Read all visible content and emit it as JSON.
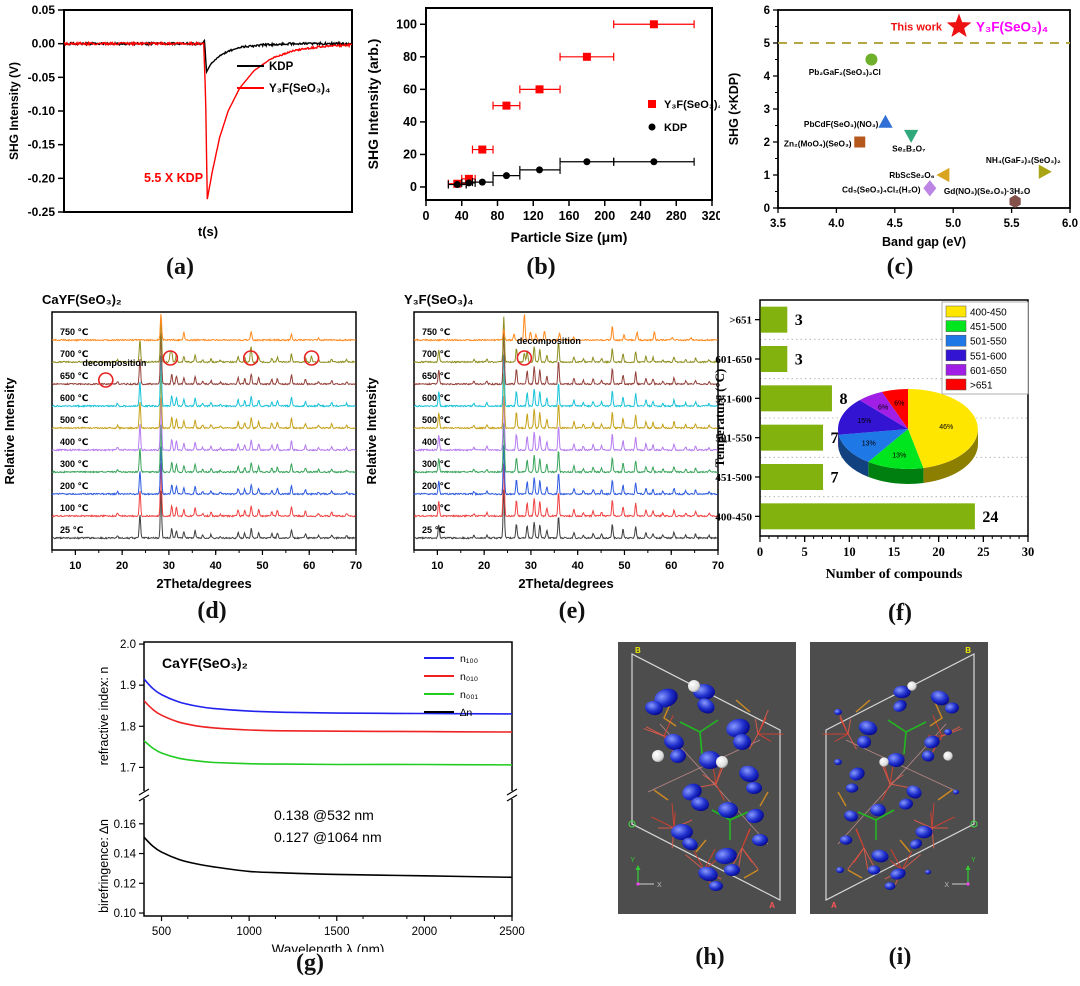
{
  "captions": {
    "a": "(a)",
    "b": "(b)",
    "c": "(c)",
    "d": "(d)",
    "e": "(e)",
    "f": "(f)",
    "g": "(g)",
    "h": "(h)",
    "i": "(i)"
  },
  "chart_data": [
    {
      "panel": "a",
      "type": "line",
      "xlabel": "t(s)",
      "ylabel": "SHG Intensity (V)",
      "xlim": [
        0,
        10
      ],
      "ylim": [
        -0.25,
        0.05
      ],
      "yticks": [
        "0.05",
        "0.00",
        "-0.05",
        "-0.10",
        "-0.15",
        "-0.20",
        "-0.25"
      ],
      "annotation": {
        "text": "5.5 X KDP",
        "color": "#ff0000"
      },
      "legend_position": "middle-right",
      "series": [
        {
          "name": "KDP",
          "color": "#000000",
          "points": [
            [
              0,
              0
            ],
            [
              4.8,
              0
            ],
            [
              4.88,
              0.004
            ],
            [
              4.95,
              -0.042
            ],
            [
              5.1,
              -0.03
            ],
            [
              5.35,
              -0.02
            ],
            [
              5.7,
              -0.011
            ],
            [
              6.2,
              -0.005
            ],
            [
              6.9,
              -0.002
            ],
            [
              8,
              0
            ],
            [
              10,
              0
            ]
          ]
        },
        {
          "name": "Y₃F(SeO₃)₄",
          "color": "#ff0000",
          "points": [
            [
              0,
              0
            ],
            [
              4.85,
              0
            ],
            [
              4.92,
              -0.08
            ],
            [
              4.97,
              -0.232
            ],
            [
              5.15,
              -0.19
            ],
            [
              5.4,
              -0.14
            ],
            [
              5.7,
              -0.1
            ],
            [
              6.1,
              -0.066
            ],
            [
              6.6,
              -0.04
            ],
            [
              7.2,
              -0.022
            ],
            [
              8,
              -0.01
            ],
            [
              9,
              -0.004
            ],
            [
              10,
              -0.002
            ]
          ]
        }
      ]
    },
    {
      "panel": "b",
      "type": "scatter",
      "xlabel": "Particle Size (μm)",
      "ylabel": "SHG Intensity (arb.)",
      "xlim": [
        0,
        320
      ],
      "xticks": [
        0,
        40,
        80,
        120,
        160,
        200,
        240,
        280,
        320
      ],
      "ylim": [
        -8,
        110
      ],
      "yticks": [
        0,
        20,
        40,
        60,
        80,
        100
      ],
      "series": [
        {
          "name": "Y₃F(SeO₃)₄",
          "color": "#ff0000",
          "marker": "square",
          "points": [
            {
              "x": 35,
              "y": 2,
              "xlo": 25,
              "xhi": 45
            },
            {
              "x": 48,
              "y": 5,
              "xlo": 40,
              "xhi": 55
            },
            {
              "x": 63,
              "y": 23,
              "xlo": 52,
              "xhi": 75
            },
            {
              "x": 90,
              "y": 50,
              "xlo": 75,
              "xhi": 105
            },
            {
              "x": 127,
              "y": 60,
              "xlo": 105,
              "xhi": 150
            },
            {
              "x": 180,
              "y": 80,
              "xlo": 150,
              "xhi": 210
            },
            {
              "x": 255,
              "y": 100,
              "xlo": 210,
              "xhi": 300
            }
          ]
        },
        {
          "name": "KDP",
          "color": "#000000",
          "marker": "circle",
          "points": [
            {
              "x": 35,
              "y": 1.5,
              "xlo": 25,
              "xhi": 45
            },
            {
              "x": 48,
              "y": 2.5,
              "xlo": 40,
              "xhi": 55
            },
            {
              "x": 63,
              "y": 3,
              "xlo": 52,
              "xhi": 75
            },
            {
              "x": 90,
              "y": 7,
              "xlo": 75,
              "xhi": 105
            },
            {
              "x": 127,
              "y": 10.5,
              "xlo": 105,
              "xhi": 150
            },
            {
              "x": 180,
              "y": 15.5,
              "xlo": 150,
              "xhi": 210
            },
            {
              "x": 255,
              "y": 15.5,
              "xlo": 210,
              "xhi": 300
            }
          ]
        }
      ]
    },
    {
      "panel": "c",
      "type": "scatter-labeled",
      "xlabel": "Band gap (eV)",
      "ylabel": "SHG (×KDP)",
      "xlim": [
        3.5,
        6.0
      ],
      "xticks": [
        "3.5",
        "4.0",
        "4.5",
        "5.0",
        "5.5",
        "6.0"
      ],
      "ylim": [
        0,
        6
      ],
      "yticks": [
        0,
        1,
        2,
        3,
        4,
        5,
        6
      ],
      "ref_line": {
        "y": 5,
        "color": "#b5a642"
      },
      "highlight": {
        "label_1": "This work",
        "label_1_color": "#ee1111",
        "label_2": "Y₃F(SeO₃)₄",
        "label_2_color": "#ff00ff",
        "x": 5.05,
        "y": 5.5,
        "marker": "star",
        "color": "#ee1111"
      },
      "points": [
        {
          "label": "Pb₂GaF₂(SeO₃)₂Cl",
          "x": 4.3,
          "y": 4.5,
          "marker": "circle",
          "color": "#6fb02a",
          "lx": 4.38,
          "ly": 4.12,
          "anchor": "end"
        },
        {
          "label": "PbCdF(SeO₃)(NO₃)",
          "x": 4.42,
          "y": 2.6,
          "marker": "triangle-up",
          "color": "#2f6fd6",
          "lx": 4.36,
          "ly": 2.55,
          "anchor": "end"
        },
        {
          "label": "Se₂B₂O₇",
          "x": 4.64,
          "y": 2.2,
          "marker": "triangle-down",
          "color": "#2fa87c",
          "lx": 4.62,
          "ly": 1.8,
          "anchor": "middle"
        },
        {
          "label": "Zn₂(MoO₄)(SeO₃)",
          "x": 4.2,
          "y": 2.0,
          "marker": "square",
          "color": "#b4591b",
          "lx": 4.13,
          "ly": 1.95,
          "anchor": "end"
        },
        {
          "label": "RbScSe₂O₆",
          "x": 4.92,
          "y": 1.0,
          "marker": "triangle-left",
          "color": "#d9a520",
          "lx": 4.84,
          "ly": 1.0,
          "anchor": "end"
        },
        {
          "label": "NH₄(GaF₂)₃(SeO₃)₂",
          "x": 5.78,
          "y": 1.1,
          "marker": "triangle-right",
          "color": "#aaa414",
          "lx": 5.92,
          "ly": 1.45,
          "anchor": "end"
        },
        {
          "label": "Cd₅(SeO₃)₄Cl₂(H₂O)",
          "x": 4.8,
          "y": 0.6,
          "marker": "diamond",
          "color": "#bc84e4",
          "lx": 4.72,
          "ly": 0.56,
          "anchor": "end"
        },
        {
          "label": "Gd(NO₃)(Se₂O₅)·3H₂O",
          "x": 5.53,
          "y": 0.2,
          "marker": "hexagon",
          "color": "#84504a",
          "lx": 5.66,
          "ly": 0.52,
          "anchor": "end"
        }
      ]
    },
    {
      "panel": "d",
      "type": "xrd-stack",
      "title": "CaYF(SeO₃)₂",
      "xlabel": "2Theta/degrees",
      "ylabel": "Relative Intensity",
      "xlim": [
        5,
        70
      ],
      "xticks": [
        10,
        20,
        30,
        40,
        50,
        60,
        70
      ],
      "temperatures": [
        "25 ℃",
        "100 ℃",
        "200 ℃",
        "300 ℃",
        "400 ℃",
        "500 ℃",
        "600 ℃",
        "650 ℃",
        "700 ℃",
        "750 ℃"
      ],
      "colors": [
        "#3f3f3f",
        "#f04242",
        "#2e5bdf",
        "#3aa45c",
        "#b57bef",
        "#c7a21b",
        "#19c2d8",
        "#94403a",
        "#8e8e20",
        "#ff8a1f"
      ],
      "annotation": {
        "text": "decomposition",
        "x": 11.5,
        "trace": 7
      },
      "circles": [
        {
          "x": 16.5,
          "trace": 7
        },
        {
          "x": 30.3,
          "trace": 8
        },
        {
          "x": 47.5,
          "trace": 8
        },
        {
          "x": 60.5,
          "trace": 8
        }
      ],
      "peaks_main": [
        [
          19,
          0.05
        ],
        [
          23.8,
          0.5
        ],
        [
          28.3,
          1.0
        ],
        [
          30.6,
          0.2
        ],
        [
          31.6,
          0.16
        ],
        [
          33.2,
          0.13
        ],
        [
          35.6,
          0.16
        ],
        [
          37.2,
          0.05
        ],
        [
          39,
          0.07
        ],
        [
          41,
          0.04
        ],
        [
          44.8,
          0.12
        ],
        [
          46.2,
          0.1
        ],
        [
          47.6,
          0.2
        ],
        [
          49.2,
          0.12
        ],
        [
          52,
          0.09
        ],
        [
          53.2,
          0.11
        ],
        [
          56.2,
          0.18
        ],
        [
          59.2,
          0.09
        ],
        [
          62,
          0.05
        ],
        [
          64.8,
          0.07
        ],
        [
          68,
          0.05
        ]
      ],
      "peaks_extra_700": [
        [
          30.3,
          0.22
        ],
        [
          47.5,
          0.18
        ],
        [
          60.5,
          0.13
        ]
      ],
      "peaks_top": [
        [
          28.3,
          1.0
        ],
        [
          33.2,
          0.3
        ],
        [
          47.6,
          0.32
        ],
        [
          56.2,
          0.22
        ],
        [
          62,
          0.07
        ]
      ]
    },
    {
      "panel": "e",
      "type": "xrd-stack",
      "title": "Y₃F(SeO₃)₄",
      "xlabel": "2Theta/degrees",
      "ylabel": "Relative Intensity",
      "xlim": [
        5,
        70
      ],
      "xticks": [
        10,
        20,
        30,
        40,
        50,
        60,
        70
      ],
      "temperatures": [
        "25 ℃",
        "100 ℃",
        "200 ℃",
        "300 ℃",
        "400 ℃",
        "500 ℃",
        "600 ℃",
        "650 ℃",
        "700 ℃",
        "750 ℃"
      ],
      "colors": [
        "#3f3f3f",
        "#f04242",
        "#2e5bdf",
        "#3aa45c",
        "#b57bef",
        "#c7a21b",
        "#19c2d8",
        "#94403a",
        "#8e8e20",
        "#ff8a1f"
      ],
      "annotation": {
        "text": "decomposition",
        "x": 27,
        "trace": 8
      },
      "circles": [
        {
          "x": 28.6,
          "trace": 8
        }
      ],
      "peaks_main": [
        [
          10.3,
          0.28
        ],
        [
          17.8,
          0.05
        ],
        [
          20.6,
          0.06
        ],
        [
          24.2,
          1.0
        ],
        [
          26.9,
          0.3
        ],
        [
          29.2,
          0.26
        ],
        [
          30.7,
          0.34
        ],
        [
          31.9,
          0.28
        ],
        [
          33.4,
          0.16
        ],
        [
          35.9,
          0.45
        ],
        [
          39.2,
          0.12
        ],
        [
          41.2,
          0.07
        ],
        [
          43.3,
          0.1
        ],
        [
          45.1,
          0.08
        ],
        [
          47.4,
          0.3
        ],
        [
          49.7,
          0.18
        ],
        [
          52.4,
          0.24
        ],
        [
          54.6,
          0.12
        ],
        [
          56.1,
          0.1
        ],
        [
          58.2,
          0.06
        ],
        [
          60.6,
          0.12
        ],
        [
          63.1,
          0.06
        ],
        [
          65.2,
          0.08
        ],
        [
          68.1,
          0.05
        ]
      ],
      "peaks_extra_700": [
        [
          28.6,
          0.2
        ]
      ],
      "peaks_top": [
        [
          24.2,
          0.4
        ],
        [
          26.4,
          0.22
        ],
        [
          28.6,
          1.0
        ],
        [
          29.9,
          0.3
        ],
        [
          31.1,
          0.2
        ],
        [
          32.9,
          0.35
        ],
        [
          36.1,
          0.25
        ],
        [
          39.1,
          0.1
        ],
        [
          47.4,
          0.5
        ],
        [
          49.9,
          0.2
        ],
        [
          52.7,
          0.3
        ],
        [
          56.4,
          0.33
        ],
        [
          60.2,
          0.1
        ],
        [
          64.2,
          0.08
        ]
      ]
    },
    {
      "panel": "f",
      "type": "bar-h",
      "xlabel": "Number of compounds",
      "ylabel": "Temperature (°C)",
      "categories": [
        "400-450",
        "451-500",
        "501-550",
        "551-600",
        "601-650",
        ">651"
      ],
      "values": [
        24,
        7,
        7,
        8,
        3,
        3
      ],
      "bar_color": "#82b20e",
      "xlim": [
        0,
        30
      ],
      "xticks": [
        0,
        5,
        10,
        15,
        20,
        25,
        30
      ],
      "pie": {
        "legend": [
          "400-450",
          "451-500",
          "501-550",
          "551-600",
          "601-650",
          ">651"
        ],
        "values_pct": [
          46,
          13,
          13,
          15,
          6,
          6
        ],
        "labels": [
          "46%",
          "13%",
          "13%",
          "15%",
          "6%",
          "6%"
        ],
        "colors": [
          "#ffe600",
          "#00e61e",
          "#1e78e6",
          "#3214d2",
          "#a01ee6",
          "#ff0000"
        ]
      }
    },
    {
      "panel": "g",
      "type": "line-broken",
      "title": "CaYF(SeO₃)₂",
      "xlabel": "Wavelength λ (nm)",
      "ylabel_top": "refractive index: n",
      "ylabel_bottom": "birefringence: ∆n",
      "xlim": [
        400,
        2500
      ],
      "xticks": [
        500,
        1000,
        1500,
        2000,
        2500
      ],
      "top_ylim": [
        1.645,
        2.005
      ],
      "top_yticks": [
        "1.7",
        "1.8",
        "1.9",
        "2.0"
      ],
      "bottom_ylim": [
        0.098,
        0.176
      ],
      "bottom_yticks": [
        "0.10",
        "0.12",
        "0.14",
        "0.16"
      ],
      "annotations": [
        "0.138 @532 nm",
        "0.127 @1064 nm"
      ],
      "x": [
        400,
        450,
        500,
        600,
        700,
        800,
        1000,
        1200,
        1500,
        2000,
        2500
      ],
      "series": [
        {
          "name": "n₁₀₀",
          "color": "#2222ee",
          "axis": "top",
          "values": [
            1.915,
            1.892,
            1.877,
            1.859,
            1.849,
            1.843,
            1.837,
            1.834,
            1.832,
            1.831,
            1.83
          ]
        },
        {
          "name": "n₀₁₀",
          "color": "#ee2222",
          "axis": "top",
          "values": [
            1.862,
            1.841,
            1.827,
            1.81,
            1.801,
            1.796,
            1.791,
            1.789,
            1.788,
            1.787,
            1.786
          ]
        },
        {
          "name": "n₀₀₁",
          "color": "#22cc22",
          "axis": "top",
          "values": [
            1.765,
            1.747,
            1.735,
            1.722,
            1.716,
            1.712,
            1.709,
            1.708,
            1.707,
            1.707,
            1.706
          ]
        },
        {
          "name": "∆n",
          "color": "#000000",
          "axis": "bottom",
          "values": [
            0.151,
            0.145,
            0.141,
            0.136,
            0.133,
            0.131,
            0.128,
            0.127,
            0.126,
            0.125,
            0.124
          ]
        }
      ]
    },
    {
      "panel": "h",
      "type": "structure-3d",
      "mirrored": false,
      "corner_labels": {
        "top": "B",
        "side": "C",
        "bottom": "A"
      },
      "axis_gizmo": [
        "Y",
        "X"
      ]
    },
    {
      "panel": "i",
      "type": "structure-3d",
      "mirrored": true,
      "corner_labels": {
        "top": "B",
        "side": "C",
        "bottom": "A"
      },
      "axis_gizmo": [
        "Y",
        "X"
      ]
    }
  ]
}
